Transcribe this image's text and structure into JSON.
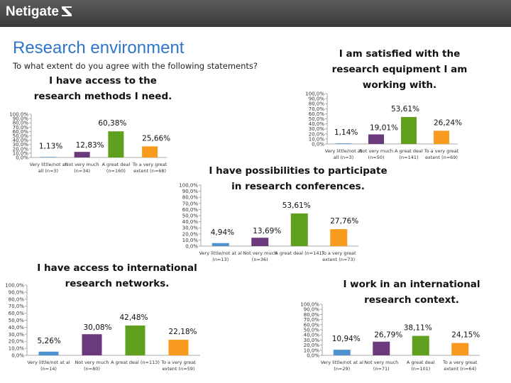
{
  "header": {
    "logo_text": "Netigate"
  },
  "page": {
    "title": "Research environment",
    "subtitle": "To what extent do you agree with the following statements?"
  },
  "colors": {
    "bar_1": "#4f91cf",
    "bar_2": "#6b3a7c",
    "bar_3": "#5fa11f",
    "bar_4": "#f79a1e",
    "axis": "#aaaaaa",
    "title_blue": "#2e76c8"
  },
  "chart_data": [
    {
      "type": "bar",
      "title": [
        "I have access to the",
        "research methods I need."
      ],
      "categories": [
        [
          "Very little/not at",
          "all (n=3)"
        ],
        [
          "Not very much",
          "(n=34)"
        ],
        [
          "A great deal",
          "(n=160)"
        ],
        [
          "To a very great",
          "extent (n=68)"
        ]
      ],
      "values": [
        1.13,
        12.83,
        60.38,
        25.66
      ],
      "value_labels": [
        "1,13%",
        "12,83%",
        "60,38%",
        "25,66%"
      ],
      "yticks": [
        "0,0%",
        "10,0%",
        "20,0%",
        "30,0%",
        "40,0%",
        "50,0%",
        "60,0%",
        "70,0%",
        "80,0%",
        "90,0%",
        "100,0%"
      ],
      "ylim": [
        0,
        100
      ]
    },
    {
      "type": "bar",
      "title": [
        "I am satisfied with the",
        "research equipment I am",
        "working with."
      ],
      "categories": [
        [
          "Very little/not at",
          "all (n=3)"
        ],
        [
          "Not very much",
          "(n=50)"
        ],
        [
          "A great deal",
          "(n=141)"
        ],
        [
          "To a very great",
          "extent (n=69)"
        ]
      ],
      "values": [
        1.14,
        19.01,
        53.61,
        26.24
      ],
      "value_labels": [
        "1,14%",
        "19,01%",
        "53,61%",
        "26,24%"
      ],
      "yticks": [
        "0,0%",
        "10,0%",
        "20,0%",
        "30,0%",
        "40,0%",
        "50,0%",
        "60,0%",
        "70,0%",
        "80,0%",
        "90,0%",
        "100,0%"
      ],
      "ylim": [
        0,
        100
      ]
    },
    {
      "type": "bar",
      "title": [
        "I have possibilities to participate",
        "in research conferences."
      ],
      "categories": [
        [
          "Very little/not at al",
          "(n=13)"
        ],
        [
          "Not very much",
          "(n=36)"
        ],
        [
          "A great deal (n=141)"
        ],
        [
          "To a very great",
          "extent (n=73)"
        ]
      ],
      "values": [
        4.94,
        13.69,
        53.61,
        27.76
      ],
      "value_labels": [
        "4,94%",
        "13,69%",
        "53,61%",
        "27,76%"
      ],
      "yticks": [
        "0,0%",
        "10,0%",
        "20,0%",
        "30,0%",
        "40,0%",
        "50,0%",
        "60,0%",
        "70,0%",
        "80,0%",
        "90,0%",
        "100,0%"
      ],
      "ylim": [
        0,
        100
      ]
    },
    {
      "type": "bar",
      "title": [
        "I have access to international",
        "research networks."
      ],
      "categories": [
        [
          "Very little/not at al",
          "(n=14)"
        ],
        [
          "Not very much",
          "(n=80)"
        ],
        [
          "A great deal (n=113)"
        ],
        [
          "To a very great",
          "extent (n=59)"
        ]
      ],
      "values": [
        5.26,
        30.08,
        42.48,
        22.18
      ],
      "value_labels": [
        "5,26%",
        "30,08%",
        "42,48%",
        "22,18%"
      ],
      "yticks": [
        "0,0%",
        "10,0%",
        "20,0%",
        "30,0%",
        "40,0%",
        "50,0%",
        "60,0%",
        "70,0%",
        "80,0%",
        "90,0%",
        "100,0%"
      ],
      "ylim": [
        0,
        100
      ]
    },
    {
      "type": "bar",
      "title": [
        "I work in an international",
        "research context."
      ],
      "categories": [
        [
          "Very little/not at al",
          "(n=29)"
        ],
        [
          "Not very much",
          "(n=71)"
        ],
        [
          "A great deal",
          "(n=101)"
        ],
        [
          "To a very great",
          "extent (n=64)"
        ]
      ],
      "values": [
        10.94,
        26.79,
        38.11,
        24.15
      ],
      "value_labels": [
        "10,94%",
        "26,79%",
        "38,11%",
        "24,15%"
      ],
      "yticks": [
        "0,0%",
        "10,0%",
        "20,0%",
        "30,0%",
        "40,0%",
        "50,0%",
        "60,0%",
        "70,0%",
        "80,0%",
        "90,0%",
        "100,0%"
      ],
      "ylim": [
        0,
        100
      ]
    }
  ]
}
